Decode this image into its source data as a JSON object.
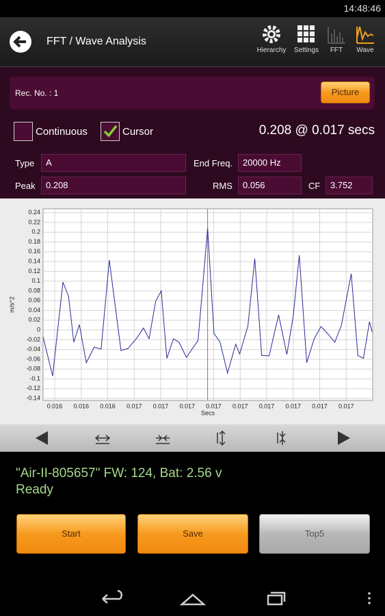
{
  "status_bar": {
    "time": "14:48:46"
  },
  "action_bar": {
    "title": "FFT / Wave Analysis",
    "buttons": [
      "Hierarchy",
      "Settings",
      "FFT",
      "Wave"
    ]
  },
  "record": {
    "label": "Rec. No. : 1",
    "button": "Picture"
  },
  "options": {
    "continuous": "Continuous",
    "cursor": "Cursor",
    "readout": "0.208 @ 0.017 secs"
  },
  "fields": {
    "type_label": "Type",
    "type_value": "A",
    "end_freq_label": "End Freq.",
    "end_freq_value": "20000 Hz",
    "peak_label": "Peak",
    "peak_value": "0.208",
    "rms_label": "RMS",
    "rms_value": "0.056",
    "cf_label": "CF",
    "cf_value": "3.752"
  },
  "chart_data": {
    "type": "line",
    "x_label": "Secs",
    "y_label": "m/s^2",
    "x": [
      0.016156,
      0.016192,
      0.016231,
      0.016252,
      0.016272,
      0.016293,
      0.016319,
      0.016349,
      0.016375,
      0.016406,
      0.01645,
      0.016476,
      0.016509,
      0.016535,
      0.016556,
      0.016581,
      0.016602,
      0.016623,
      0.016648,
      0.016669,
      0.016697,
      0.016741,
      0.016777,
      0.016801,
      0.016824,
      0.016852,
      0.016883,
      0.016898,
      0.016929,
      0.016955,
      0.016981,
      0.017009,
      0.017045,
      0.017076,
      0.0171,
      0.017123,
      0.017151,
      0.017179,
      0.017205,
      0.017231,
      0.017257,
      0.017282,
      0.017319,
      0.017344,
      0.017365,
      0.017388,
      0.017398
    ],
    "series": [
      {
        "color": "#2a2a9a",
        "values": [
          -0.014,
          -0.094,
          0.098,
          0.069,
          -0.025,
          0.011,
          -0.067,
          -0.035,
          -0.039,
          0.143,
          -0.042,
          -0.038,
          -0.017,
          0.004,
          -0.018,
          0.059,
          0.08,
          -0.058,
          -0.018,
          -0.025,
          -0.056,
          -0.021,
          0.208,
          -0.007,
          -0.025,
          -0.088,
          -0.029,
          -0.049,
          0.008,
          0.146,
          -0.052,
          -0.053,
          0.031,
          -0.05,
          0.028,
          0.153,
          -0.067,
          -0.018,
          0.007,
          -0.008,
          -0.025,
          0.01,
          0.115,
          -0.052,
          -0.058,
          0.017,
          -0.004
        ]
      }
    ],
    "cursor": 0.016777,
    "cursor_color": "#e0504a",
    "xlim": [
      0.016156,
      0.0174
    ],
    "xticks": [
      {
        "value": 0.0162,
        "label": "0.016"
      },
      {
        "value": 0.0163,
        "label": "0.016"
      },
      {
        "value": 0.0164,
        "label": "0.016"
      },
      {
        "value": 0.0165,
        "label": "0.017"
      },
      {
        "value": 0.0166,
        "label": "0.017"
      },
      {
        "value": 0.0167,
        "label": "0.017"
      },
      {
        "value": 0.0168,
        "label": "0.017"
      },
      {
        "value": 0.0169,
        "label": "0.017"
      },
      {
        "value": 0.017,
        "label": "0.017"
      },
      {
        "value": 0.0171,
        "label": "0.017"
      },
      {
        "value": 0.0172,
        "label": "0.017"
      },
      {
        "value": 0.0173,
        "label": "0.017"
      }
    ],
    "ylim": [
      -0.144,
      0.248
    ],
    "yticks": [
      -0.14,
      -0.12,
      -0.1,
      -0.08,
      -0.06,
      -0.04,
      -0.02,
      0,
      0.02,
      0.04,
      0.06,
      0.08,
      0.1,
      0.12,
      0.14,
      0.16,
      0.18,
      0.2,
      0.22,
      0.24
    ],
    "grid": true
  },
  "device": {
    "info": "\"Air-II-805657\" FW: 124, Bat: 2.56 v",
    "state": "Ready"
  },
  "buttons": [
    "Start",
    "Save",
    "Top5"
  ]
}
